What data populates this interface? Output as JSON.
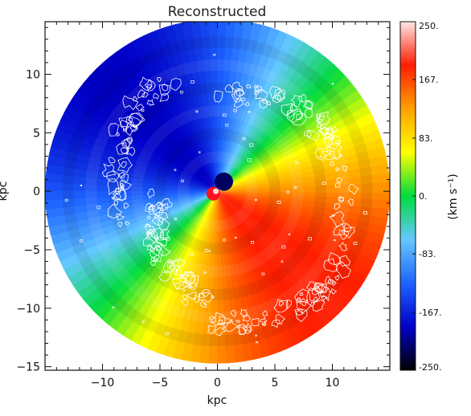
{
  "chart_data": {
    "type": "heatmap",
    "title": "Reconstructed",
    "xlabel": "kpc",
    "ylabel": "kpc",
    "xlim": [
      -15,
      15
    ],
    "ylim": [
      -15.3,
      14.5
    ],
    "xticks": [
      -10,
      -5,
      0,
      5,
      10
    ],
    "yticks": [
      -15,
      -10,
      -5,
      0,
      5,
      10
    ],
    "disk_radius_kpc": 15,
    "rings_kpc": [
      3,
      5,
      7,
      9,
      11,
      13
    ],
    "colorbar": {
      "label": "(km s⁻¹)",
      "range": [
        -250,
        250
      ],
      "tick_values": [
        250,
        167,
        83,
        0,
        -83,
        -167,
        -250
      ],
      "tick_labels": [
        "250.",
        "167.",
        "83.",
        "0.",
        "-83.",
        "-167.",
        "-250."
      ],
      "colors": [
        "#000000",
        "#0000c8",
        "#1e64ff",
        "#64c8ff",
        "#00dc3c",
        "#ffff00",
        "#ffa000",
        "#ff1e00",
        "#ffe6e6"
      ]
    },
    "velocity_field": {
      "receding_side": "lower-left",
      "approaching_side": "upper-right",
      "kinematic_major_axis_angle_deg": 225
    },
    "contours": {
      "color": "#ffffff",
      "description_arms": [
        "north-west arc",
        "east arc",
        "south arc",
        "south-west arc"
      ]
    }
  }
}
